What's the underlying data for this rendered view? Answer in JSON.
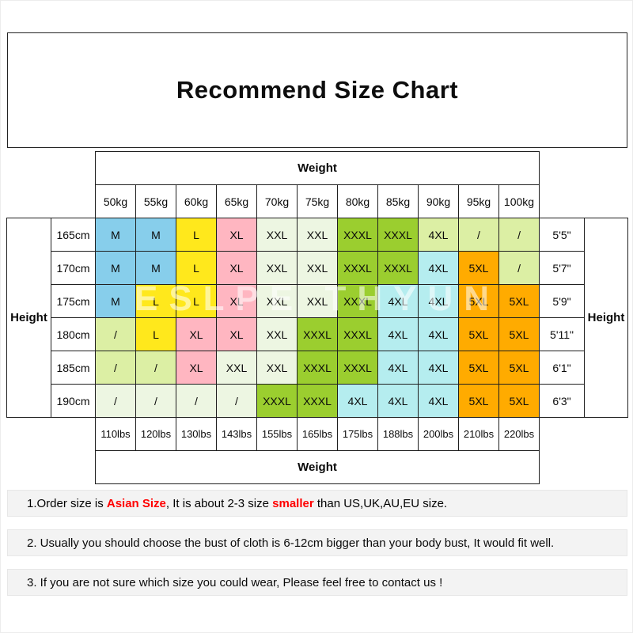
{
  "page": {
    "watermark": "ESLPE THYUN"
  },
  "chart_data": {
    "type": "table",
    "title": "Recommend Size Chart",
    "column_header_label": "Weight",
    "column_footer_label": "Weight",
    "row_header_label_left": "Height",
    "row_header_label_right": "Height",
    "columns_kg": [
      "50kg",
      "55kg",
      "60kg",
      "65kg",
      "70kg",
      "75kg",
      "80kg",
      "85kg",
      "90kg",
      "95kg",
      "100kg"
    ],
    "columns_lbs": [
      "110lbs",
      "120lbs",
      "130lbs",
      "143lbs",
      "155lbs",
      "165lbs",
      "175lbs",
      "188lbs",
      "200lbs",
      "210lbs",
      "220lbs"
    ],
    "palette": {
      "blue": "#87CEEB",
      "yellow": "#FFE81C",
      "pink": "#FFB6C1",
      "green": "#9BCE2F",
      "cyan": "#B5EDEF",
      "orange": "#FFAB00",
      "lightgreen": "#DCEFA4",
      "palegreen": "#EDF6E2"
    },
    "rows": [
      {
        "height_cm": "165cm",
        "height_ft": "5'5\"",
        "sizes": [
          "M",
          "M",
          "L",
          "XL",
          "XXL",
          "XXL",
          "XXXL",
          "XXXL",
          "4XL",
          "/",
          "/"
        ],
        "colors": [
          "blue",
          "blue",
          "yellow",
          "pink",
          "palegreen",
          "palegreen",
          "green",
          "green",
          "lightgreen",
          "lightgreen",
          "lightgreen"
        ]
      },
      {
        "height_cm": "170cm",
        "height_ft": "5'7\"",
        "sizes": [
          "M",
          "M",
          "L",
          "XL",
          "XXL",
          "XXL",
          "XXXL",
          "XXXL",
          "4XL",
          "5XL",
          "/"
        ],
        "colors": [
          "blue",
          "blue",
          "yellow",
          "pink",
          "palegreen",
          "palegreen",
          "green",
          "green",
          "cyan",
          "orange",
          "lightgreen"
        ]
      },
      {
        "height_cm": "175cm",
        "height_ft": "5'9\"",
        "sizes": [
          "M",
          "L",
          "L",
          "XL",
          "XXL",
          "XXL",
          "XXXL",
          "4XL",
          "4XL",
          "5XL",
          "5XL"
        ],
        "colors": [
          "blue",
          "yellow",
          "yellow",
          "pink",
          "palegreen",
          "palegreen",
          "green",
          "cyan",
          "cyan",
          "orange",
          "orange"
        ]
      },
      {
        "height_cm": "180cm",
        "height_ft": "5'11\"",
        "sizes": [
          "/",
          "L",
          "XL",
          "XL",
          "XXL",
          "XXXL",
          "XXXL",
          "4XL",
          "4XL",
          "5XL",
          "5XL"
        ],
        "colors": [
          "lightgreen",
          "yellow",
          "pink",
          "pink",
          "palegreen",
          "green",
          "green",
          "cyan",
          "cyan",
          "orange",
          "orange"
        ]
      },
      {
        "height_cm": "185cm",
        "height_ft": "6'1\"",
        "sizes": [
          "/",
          "/",
          "XL",
          "XXL",
          "XXL",
          "XXXL",
          "XXXL",
          "4XL",
          "4XL",
          "5XL",
          "5XL"
        ],
        "colors": [
          "lightgreen",
          "lightgreen",
          "pink",
          "palegreen",
          "palegreen",
          "green",
          "green",
          "cyan",
          "cyan",
          "orange",
          "orange"
        ]
      },
      {
        "height_cm": "190cm",
        "height_ft": "6'3\"",
        "sizes": [
          "/",
          "/",
          "/",
          "/",
          "XXXL",
          "XXXL",
          "4XL",
          "4XL",
          "4XL",
          "5XL",
          "5XL"
        ],
        "colors": [
          "palegreen",
          "palegreen",
          "palegreen",
          "palegreen",
          "green",
          "green",
          "cyan",
          "cyan",
          "cyan",
          "orange",
          "orange"
        ]
      }
    ]
  },
  "notes": {
    "note1": {
      "segments": [
        {
          "text": "1.Order size is ",
          "color": "#000000",
          "bold": false
        },
        {
          "text": "Asian Size",
          "color": "#FF0000",
          "bold": true
        },
        {
          "text": ", It is about 2-3 size ",
          "color": "#000000",
          "bold": false
        },
        {
          "text": "smaller",
          "color": "#FF0000",
          "bold": true
        },
        {
          "text": " than US,UK,AU,EU size.",
          "color": "#000000",
          "bold": false
        }
      ]
    },
    "note2": "2. Usually you should choose the bust of cloth is 6-12cm bigger than your body bust, It would fit well.",
    "note3": "3. If you are not sure which size you could wear, Please feel free to contact us !"
  }
}
